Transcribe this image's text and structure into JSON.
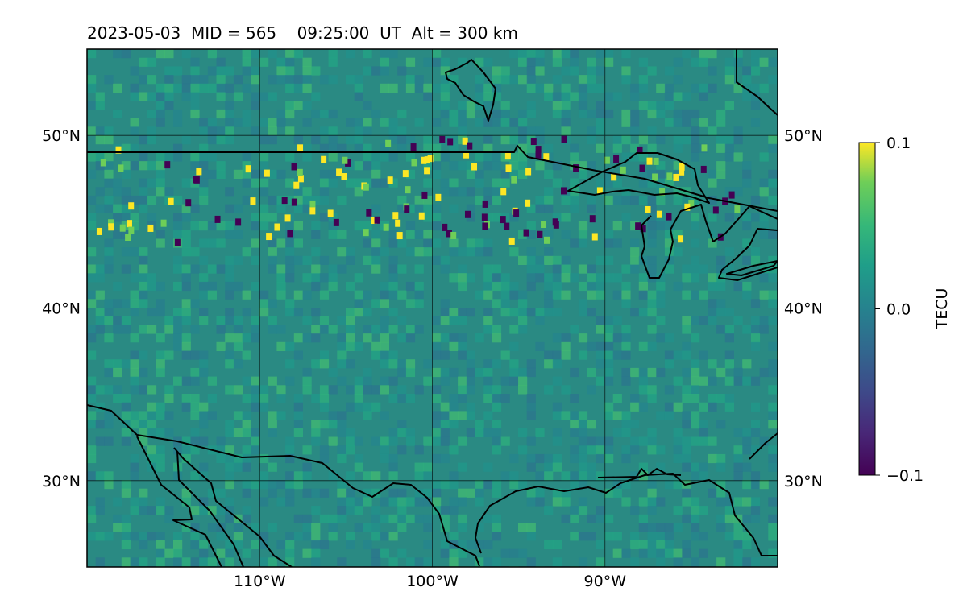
{
  "header": {
    "title": "2023-05-03  MID = 565    09:25:00  UT  Alt = 300 km"
  },
  "map": {
    "extent": {
      "lon": [
        -120,
        -80
      ],
      "lat": [
        25,
        55
      ]
    },
    "lat_ticks": [
      {
        "value": 50,
        "label": "50°N"
      },
      {
        "value": 40,
        "label": "40°N"
      },
      {
        "value": 30,
        "label": "30°N"
      }
    ],
    "lon_ticks": [
      {
        "value": -110,
        "label": "110°W"
      },
      {
        "value": -100,
        "label": "100°W"
      },
      {
        "value": -90,
        "label": "90°W"
      }
    ],
    "background_color": "#2a8a83",
    "colors": {
      "low": "#440154",
      "mid": "#21918c",
      "high": "#fde725"
    }
  },
  "colorbar": {
    "label": "TECU",
    "vmin": -0.1,
    "vmax": 0.1,
    "ticks": [
      {
        "value": 0.1,
        "label": "0.1"
      },
      {
        "value": 0.0,
        "label": "0.0"
      },
      {
        "value": -0.1,
        "label": "−0.1"
      }
    ]
  }
}
